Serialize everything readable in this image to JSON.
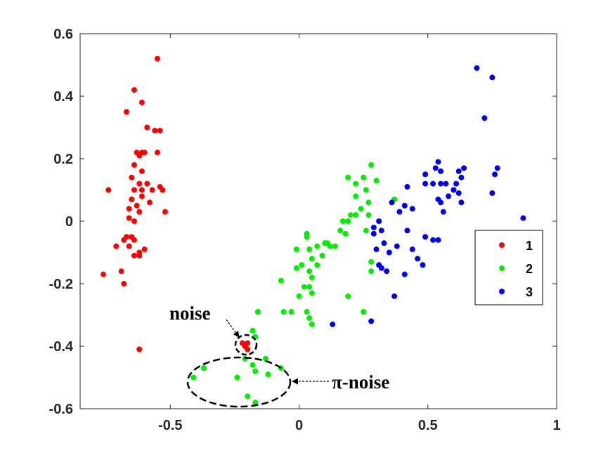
{
  "chart_data": {
    "type": "scatter",
    "xlim": [
      -0.85,
      1
    ],
    "ylim": [
      -0.6,
      0.6
    ],
    "xticks": [
      -0.5,
      0,
      0.5,
      1
    ],
    "xtick_labels": [
      "-0.5",
      "0",
      "0.5",
      "1"
    ],
    "yticks": [
      -0.6,
      -0.4,
      -0.2,
      0,
      0.2,
      0.4,
      0.6
    ],
    "ytick_labels": [
      "-0.6",
      "-0.4",
      "-0.2",
      "0",
      "0.2",
      "0.4",
      "0.6"
    ],
    "grid": false,
    "legend_position": "right",
    "series": [
      {
        "name": "1",
        "color": "#ff0000",
        "points": [
          [
            -0.55,
            0.52
          ],
          [
            -0.64,
            0.42
          ],
          [
            -0.61,
            0.38
          ],
          [
            -0.67,
            0.35
          ],
          [
            -0.59,
            0.3
          ],
          [
            -0.56,
            0.29
          ],
          [
            -0.54,
            0.29
          ],
          [
            -0.63,
            0.22
          ],
          [
            -0.61,
            0.22
          ],
          [
            -0.62,
            0.21
          ],
          [
            -0.6,
            0.22
          ],
          [
            -0.55,
            0.22
          ],
          [
            -0.64,
            0.18
          ],
          [
            -0.61,
            0.16
          ],
          [
            -0.65,
            0.14
          ],
          [
            -0.59,
            0.12
          ],
          [
            -0.62,
            0.12
          ],
          [
            -0.61,
            0.1
          ],
          [
            -0.64,
            0.1
          ],
          [
            -0.57,
            0.1
          ],
          [
            -0.54,
            0.11
          ],
          [
            -0.53,
            0.1
          ],
          [
            -0.74,
            0.1
          ],
          [
            -0.65,
            0.07
          ],
          [
            -0.61,
            0.08
          ],
          [
            -0.63,
            0.05
          ],
          [
            -0.58,
            0.06
          ],
          [
            -0.66,
            0.04
          ],
          [
            -0.62,
            0.03
          ],
          [
            -0.52,
            0.03
          ],
          [
            -0.66,
            0.01
          ],
          [
            -0.64,
            0.0
          ],
          [
            -0.67,
            -0.05
          ],
          [
            -0.65,
            -0.05
          ],
          [
            -0.68,
            -0.06
          ],
          [
            -0.64,
            -0.06
          ],
          [
            -0.66,
            -0.08
          ],
          [
            -0.71,
            -0.08
          ],
          [
            -0.6,
            -0.09
          ],
          [
            -0.62,
            -0.1
          ],
          [
            -0.64,
            -0.11
          ],
          [
            -0.62,
            -0.11
          ],
          [
            -0.69,
            -0.16
          ],
          [
            -0.76,
            -0.17
          ],
          [
            -0.68,
            -0.2
          ],
          [
            -0.62,
            -0.41
          ],
          [
            -0.22,
            -0.39
          ],
          [
            -0.2,
            -0.39
          ],
          [
            -0.21,
            -0.4
          ],
          [
            -0.2,
            -0.41
          ]
        ]
      },
      {
        "name": "2",
        "color": "#00ee00",
        "points": [
          [
            0.28,
            0.18
          ],
          [
            0.19,
            0.14
          ],
          [
            0.25,
            0.14
          ],
          [
            0.22,
            0.12
          ],
          [
            0.3,
            0.13
          ],
          [
            0.26,
            0.1
          ],
          [
            0.22,
            0.08
          ],
          [
            0.27,
            0.06
          ],
          [
            0.37,
            0.07
          ],
          [
            0.24,
            0.04
          ],
          [
            0.2,
            0.02
          ],
          [
            0.27,
            0.02
          ],
          [
            0.22,
            0.02
          ],
          [
            0.17,
            0.0
          ],
          [
            0.19,
            0.0
          ],
          [
            0.26,
            -0.03
          ],
          [
            0.16,
            -0.03
          ],
          [
            0.03,
            -0.04
          ],
          [
            0.03,
            -0.05
          ],
          [
            0.18,
            -0.04
          ],
          [
            0.1,
            -0.07
          ],
          [
            0.12,
            -0.08
          ],
          [
            0.07,
            -0.08
          ],
          [
            0.14,
            -0.08
          ],
          [
            0.11,
            -0.07
          ],
          [
            0.04,
            -0.09
          ],
          [
            -0.01,
            -0.09
          ],
          [
            0.09,
            -0.11
          ],
          [
            0.05,
            -0.12
          ],
          [
            0.07,
            -0.14
          ],
          [
            0.01,
            -0.14
          ],
          [
            -0.01,
            -0.15
          ],
          [
            0.04,
            -0.16
          ],
          [
            0.28,
            -0.13
          ],
          [
            0.28,
            -0.16
          ],
          [
            0.05,
            -0.18
          ],
          [
            0.04,
            -0.21
          ],
          [
            0.02,
            -0.21
          ],
          [
            -0.07,
            -0.19
          ],
          [
            0.05,
            -0.23
          ],
          [
            0.0,
            -0.24
          ],
          [
            0.19,
            -0.24
          ],
          [
            0.03,
            -0.29
          ],
          [
            -0.03,
            -0.29
          ],
          [
            -0.06,
            -0.29
          ],
          [
            0.04,
            -0.31
          ],
          [
            0.05,
            -0.33
          ],
          [
            0.25,
            -0.29
          ],
          [
            -0.16,
            -0.29
          ],
          [
            -0.18,
            -0.35
          ],
          [
            -0.17,
            -0.37
          ],
          [
            -0.21,
            -0.44
          ],
          [
            -0.13,
            -0.44
          ],
          [
            -0.18,
            -0.46
          ],
          [
            -0.07,
            -0.47
          ],
          [
            -0.17,
            -0.48
          ],
          [
            -0.37,
            -0.47
          ],
          [
            -0.12,
            -0.49
          ],
          [
            -0.41,
            -0.5
          ],
          [
            -0.24,
            -0.5
          ],
          [
            -0.2,
            -0.56
          ],
          [
            -0.17,
            -0.58
          ]
        ]
      },
      {
        "name": "3",
        "color": "#0000ee",
        "points": [
          [
            0.69,
            0.49
          ],
          [
            0.75,
            0.46
          ],
          [
            0.72,
            0.33
          ],
          [
            0.54,
            0.19
          ],
          [
            0.53,
            0.17
          ],
          [
            0.55,
            0.16
          ],
          [
            0.64,
            0.17
          ],
          [
            0.77,
            0.17
          ],
          [
            0.62,
            0.16
          ],
          [
            0.63,
            0.14
          ],
          [
            0.76,
            0.15
          ],
          [
            0.49,
            0.15
          ],
          [
            0.57,
            0.12
          ],
          [
            0.52,
            0.12
          ],
          [
            0.55,
            0.12
          ],
          [
            0.61,
            0.12
          ],
          [
            0.49,
            0.12
          ],
          [
            0.42,
            0.11
          ],
          [
            0.6,
            0.1
          ],
          [
            0.62,
            0.09
          ],
          [
            0.58,
            0.08
          ],
          [
            0.75,
            0.09
          ],
          [
            0.54,
            0.07
          ],
          [
            0.55,
            0.06
          ],
          [
            0.63,
            0.06
          ],
          [
            0.41,
            0.05
          ],
          [
            0.36,
            0.06
          ],
          [
            0.39,
            0.03
          ],
          [
            0.44,
            0.04
          ],
          [
            0.56,
            0.03
          ],
          [
            0.87,
            0.01
          ],
          [
            0.31,
            0.0
          ],
          [
            0.29,
            -0.02
          ],
          [
            0.32,
            -0.03
          ],
          [
            0.42,
            -0.03
          ],
          [
            0.29,
            -0.04
          ],
          [
            0.49,
            -0.05
          ],
          [
            0.52,
            -0.06
          ],
          [
            0.54,
            -0.06
          ],
          [
            0.33,
            -0.07
          ],
          [
            0.38,
            -0.08
          ],
          [
            0.3,
            -0.09
          ],
          [
            0.44,
            -0.09
          ],
          [
            0.35,
            -0.1
          ],
          [
            0.46,
            -0.12
          ],
          [
            0.48,
            -0.14
          ],
          [
            0.31,
            -0.14
          ],
          [
            0.32,
            -0.15
          ],
          [
            0.34,
            -0.16
          ],
          [
            0.41,
            -0.17
          ],
          [
            0.37,
            -0.24
          ],
          [
            0.13,
            -0.33
          ],
          [
            0.28,
            -0.32
          ]
        ]
      }
    ],
    "annotations": [
      {
        "text": "noise",
        "target": [
          -0.21,
          -0.4
        ]
      },
      {
        "text": "π-noise",
        "target": [
          -0.23,
          -0.52
        ]
      }
    ]
  }
}
